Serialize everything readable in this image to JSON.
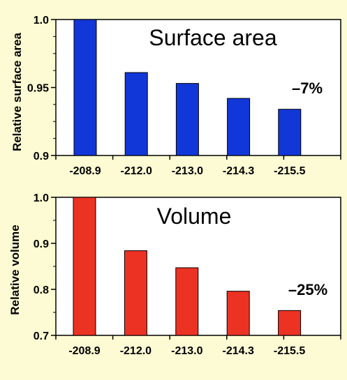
{
  "chart_data": [
    {
      "type": "bar",
      "title": "Surface area",
      "ylabel": "Relative surface area",
      "xlabel": "",
      "categories": [
        "-208.9",
        "-212.0",
        "-213.0",
        "-214.3",
        "-215.5"
      ],
      "values": [
        1.0,
        0.961,
        0.953,
        0.942,
        0.934
      ],
      "ylim": [
        0.9,
        1.0
      ],
      "yticks": [
        0.9,
        0.95,
        1.0
      ],
      "ytick_labels": [
        "0.9",
        "0.95",
        "1.0"
      ],
      "annotation": "–7%",
      "bar_color": "#1237d8",
      "grid": false
    },
    {
      "type": "bar",
      "title": "Volume",
      "ylabel": "Relative volume",
      "xlabel": "",
      "categories": [
        "-208.9",
        "-212.0",
        "-213.0",
        "-214.3",
        "-215.5"
      ],
      "values": [
        1.0,
        0.884,
        0.847,
        0.796,
        0.754
      ],
      "ylim": [
        0.7,
        1.0
      ],
      "yticks": [
        0.7,
        0.8,
        0.9,
        1.0
      ],
      "ytick_labels": [
        "0.7",
        "0.8",
        "0.9",
        "1.0"
      ],
      "annotation": "–25%",
      "bar_color": "#ec3223",
      "grid": false
    }
  ]
}
